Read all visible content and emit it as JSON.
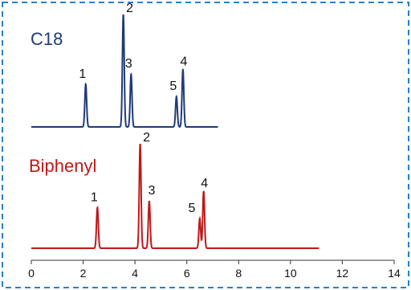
{
  "colors": {
    "border": "#2a7fc9",
    "c18": "#1f3a7a",
    "biphenyl": "#c01818",
    "axis": "#333333",
    "text": "#111111"
  },
  "chart_data": {
    "type": "line",
    "xlim": [
      0,
      14
    ],
    "x_ticks": [
      0,
      2,
      4,
      6,
      8,
      10,
      12,
      14
    ],
    "grid": false,
    "series": [
      {
        "name": "C18",
        "x_range": [
          0,
          7.2
        ],
        "peaks": [
          {
            "label": "1",
            "x": 2.1,
            "height": 0.38
          },
          {
            "label": "2",
            "x": 3.55,
            "height": 1.0
          },
          {
            "label": "3",
            "x": 3.85,
            "height": 0.47
          },
          {
            "label": "5",
            "x": 5.6,
            "height": 0.27
          },
          {
            "label": "4",
            "x": 5.85,
            "height": 0.51
          }
        ]
      },
      {
        "name": "Biphenyl",
        "x_range": [
          0,
          11.1
        ],
        "peaks": [
          {
            "label": "1",
            "x": 2.55,
            "height": 0.37
          },
          {
            "label": "2",
            "x": 4.2,
            "height": 0.95
          },
          {
            "label": "3",
            "x": 4.55,
            "height": 0.43
          },
          {
            "label": "5",
            "x": 6.5,
            "height": 0.27
          },
          {
            "label": "4",
            "x": 6.65,
            "height": 0.52
          }
        ]
      }
    ]
  }
}
